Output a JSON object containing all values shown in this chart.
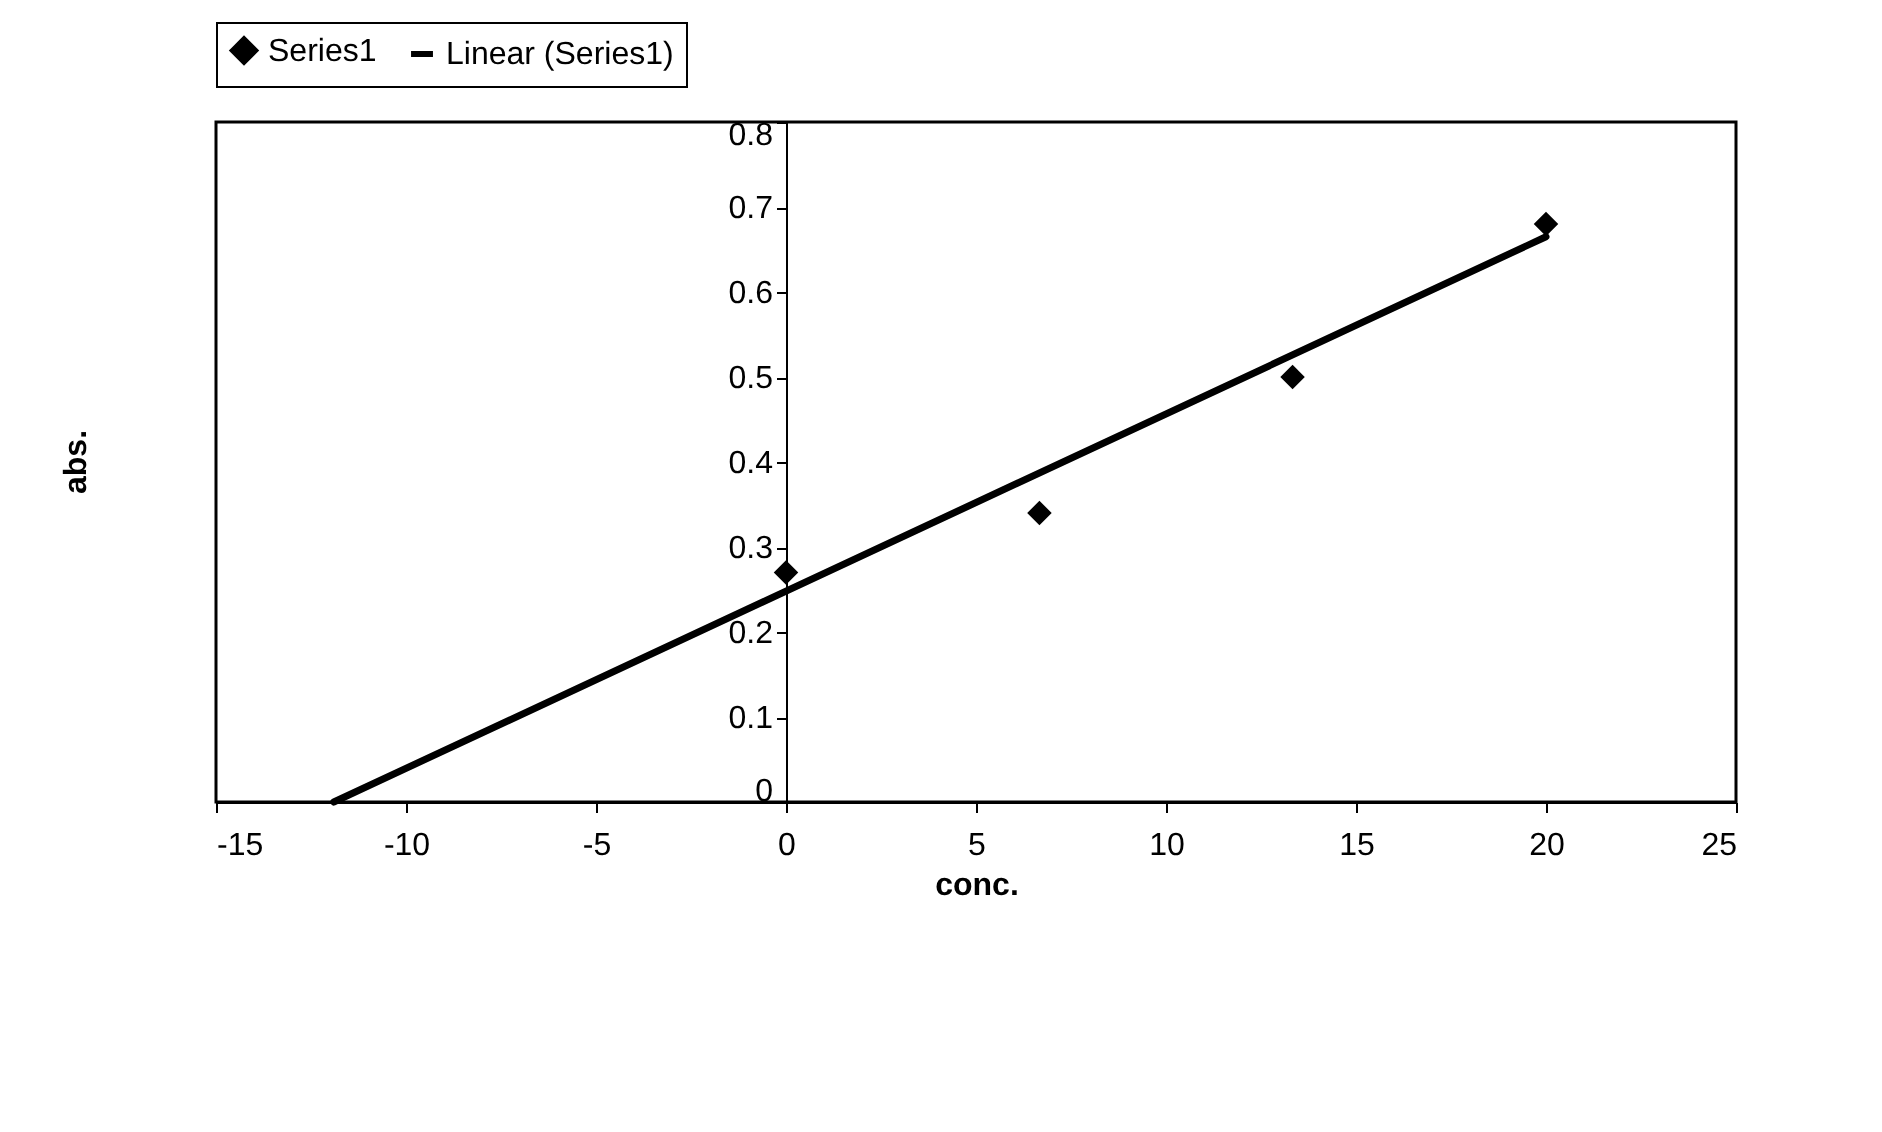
{
  "chart_data": {
    "type": "scatter",
    "xlabel": "conc.",
    "ylabel": "abs.",
    "xlim": [
      -15,
      25
    ],
    "ylim": [
      0,
      0.8
    ],
    "xticks": [
      -15,
      -10,
      -5,
      0,
      5,
      10,
      15,
      20,
      25
    ],
    "yticks": [
      0,
      0.1,
      0.2,
      0.3,
      0.4,
      0.5,
      0.6,
      0.7,
      0.8
    ],
    "grid": false,
    "legend": "top",
    "series": [
      {
        "name": "Series1",
        "marker": "diamond",
        "color": "#000000",
        "x": [
          0,
          6.67,
          13.33,
          20
        ],
        "values": [
          0.27,
          0.34,
          0.5,
          0.68
        ]
      },
      {
        "name": "Linear (Series1)",
        "type": "line",
        "line_style": "solid",
        "marker": "none",
        "color": "#000000",
        "x": [
          -11.9,
          20
        ],
        "values": [
          0,
          0.665
        ]
      }
    ]
  }
}
